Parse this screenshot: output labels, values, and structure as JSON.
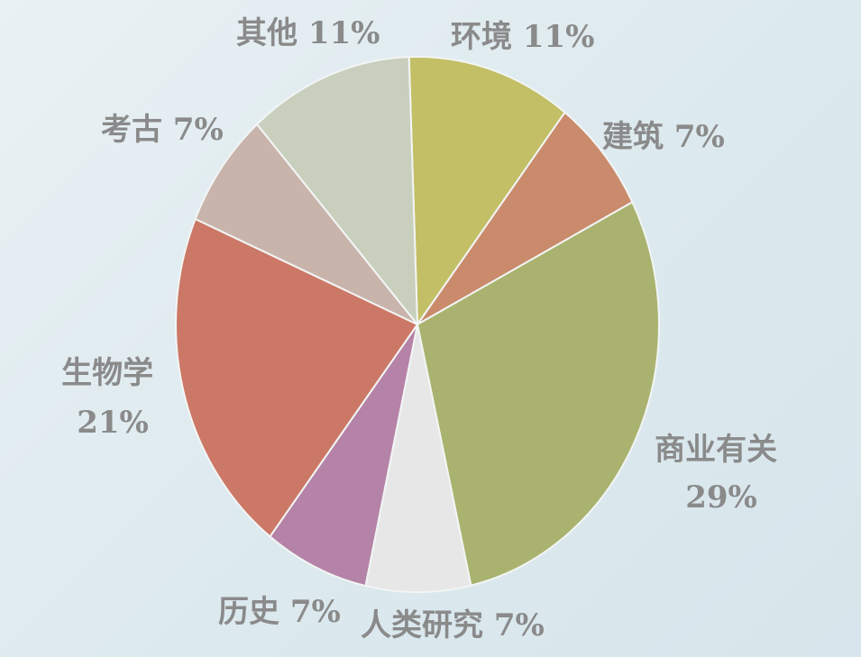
{
  "chart_data": {
    "type": "pie",
    "title": "",
    "slices": [
      {
        "label": "环境",
        "value": 11,
        "value_text": "11%",
        "color": "#c3bf66"
      },
      {
        "label": "建筑",
        "value": 7,
        "value_text": "7%",
        "color": "#c98b6c"
      },
      {
        "label": "商业有关",
        "value": 29,
        "value_text": "29%",
        "color": "#a9b36f"
      },
      {
        "label": "人类研究",
        "value": 7,
        "value_text": "7%",
        "color": "#e6e7e6"
      },
      {
        "label": "历史",
        "value": 7,
        "value_text": "7%",
        "color": "#b583a7"
      },
      {
        "label": "生物学",
        "value": 21,
        "value_text": "21%",
        "color": "#cc7867"
      },
      {
        "label": "考古",
        "value": 7,
        "value_text": "7%",
        "color": "#c9b4ac"
      },
      {
        "label": "其他",
        "value": 11,
        "value_text": "11%",
        "color": "#c8cfbd"
      }
    ],
    "label_color": "#8a8a8a"
  }
}
